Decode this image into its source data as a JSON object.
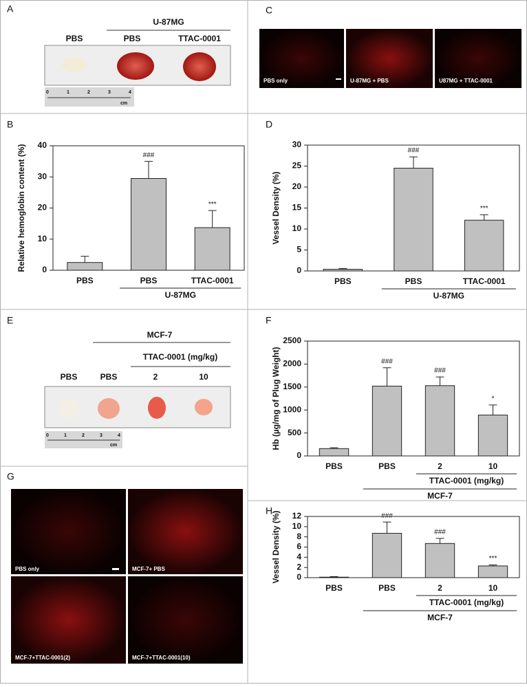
{
  "chart_data": [
    {
      "panel": "B",
      "type": "bar",
      "ylabel": "Relative hemoglobin content (%)",
      "categories": [
        "PBS",
        "PBS",
        "TTAC-0001"
      ],
      "values": [
        2.5,
        29.5,
        13.7
      ],
      "errors": [
        2,
        5.5,
        5.5
      ],
      "annotations": [
        null,
        "###",
        "***"
      ],
      "color": "#c0c0c0",
      "groups": [
        {
          "label": "U-87MG",
          "categories": [
            1,
            2
          ]
        }
      ],
      "ylim": [
        0,
        40
      ],
      "yticks": [
        0,
        10,
        20,
        30,
        40
      ]
    },
    {
      "panel": "D",
      "type": "bar",
      "ylabel": "Vessel Density (%)",
      "categories": [
        "PBS",
        "PBS",
        "TTAC-0001"
      ],
      "values": [
        0.4,
        24.5,
        12.1
      ],
      "errors": [
        0.2,
        2.7,
        1.3
      ],
      "annotations": [
        null,
        "###",
        "***"
      ],
      "color": "#c0c0c0",
      "groups": [
        {
          "label": "U-87MG",
          "categories": [
            1,
            2
          ]
        }
      ],
      "ylim": [
        0,
        30
      ],
      "yticks": [
        0,
        5,
        10,
        15,
        20,
        25,
        30
      ]
    },
    {
      "panel": "F",
      "type": "bar",
      "ylabel": "Hb (µg/mg of Plug Weight)",
      "categories": [
        "PBS",
        "PBS",
        "2",
        "10"
      ],
      "values": [
        160,
        1520,
        1530,
        890
      ],
      "errors": [
        20,
        400,
        190,
        220
      ],
      "annotations": [
        null,
        "###",
        "###",
        "*"
      ],
      "color": "#c0c0c0",
      "groups": [
        {
          "label": "TTAC-0001 (mg/kg)",
          "categories": [
            2,
            3
          ]
        },
        {
          "label": "MCF-7",
          "categories": [
            1,
            3
          ]
        }
      ],
      "ylim": [
        0,
        2500
      ],
      "yticks": [
        0,
        500,
        1000,
        1500,
        2000,
        2500
      ]
    },
    {
      "panel": "H",
      "type": "bar",
      "ylabel": "Vessel Density (%)",
      "categories": [
        "PBS",
        "PBS",
        "2",
        "10"
      ],
      "values": [
        0.1,
        8.7,
        6.7,
        2.3
      ],
      "errors": [
        0.1,
        2.2,
        1.0,
        0.2
      ],
      "annotations": [
        null,
        "###",
        "###",
        "***"
      ],
      "color": "#c0c0c0",
      "groups": [
        {
          "label": "TTAC-0001 (mg/kg)",
          "categories": [
            2,
            3
          ]
        },
        {
          "label": "MCF-7",
          "categories": [
            1,
            3
          ]
        }
      ],
      "ylim": [
        0,
        12
      ],
      "yticks": [
        0,
        2,
        4,
        6,
        8,
        10,
        12
      ]
    }
  ],
  "photos": {
    "A": {
      "panel": "A",
      "group": "U-87MG",
      "labels": [
        "PBS",
        "PBS",
        "TTAC-0001"
      ],
      "ruler": [
        "0",
        "1",
        "2",
        "3",
        "4",
        "cm"
      ]
    },
    "C": {
      "panel": "C",
      "labels": [
        "PBS only",
        "U-87MG  + PBS",
        "U87MG + TTAC-0001"
      ]
    },
    "E": {
      "panel": "E",
      "group": "MCF-7",
      "subgroup": "TTAC-0001 (mg/kg)",
      "labels": [
        "PBS",
        "PBS",
        "2",
        "10"
      ],
      "ruler": [
        "0",
        "1",
        "2",
        "3",
        "4",
        "cm"
      ]
    },
    "G": {
      "panel": "G",
      "labels": [
        "PBS only",
        "MCF-7+ PBS",
        "MCF-7+TTAC-0001(2)",
        "MCF-7+TTAC-0001(10)"
      ]
    }
  }
}
